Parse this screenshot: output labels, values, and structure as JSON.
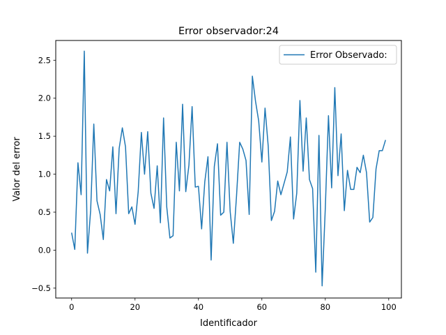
{
  "chart_data": {
    "type": "line",
    "title": "Error observador:24",
    "xlabel": "Identificador",
    "ylabel": "Valor del error",
    "xlim": [
      -5,
      104
    ],
    "ylim": [
      -0.63,
      2.76
    ],
    "xticks": [
      0,
      20,
      40,
      60,
      80,
      100
    ],
    "yticks": [
      -0.5,
      0.0,
      0.5,
      1.0,
      1.5,
      2.0,
      2.5
    ],
    "xtick_labels": [
      "0",
      "20",
      "40",
      "60",
      "80",
      "100"
    ],
    "ytick_labels": [
      "−0.5",
      "0.0",
      "0.5",
      "1.0",
      "1.5",
      "2.0",
      "2.5"
    ],
    "grid": false,
    "legend_position": "upper right",
    "series": [
      {
        "name": "Error Observado:",
        "color": "#1f77b4",
        "x": [
          0,
          1,
          2,
          3,
          4,
          5,
          6,
          7,
          8,
          9,
          10,
          11,
          12,
          13,
          14,
          15,
          16,
          17,
          18,
          19,
          20,
          21,
          22,
          23,
          24,
          25,
          26,
          27,
          28,
          29,
          30,
          31,
          32,
          33,
          34,
          35,
          36,
          37,
          38,
          39,
          40,
          41,
          42,
          43,
          44,
          45,
          46,
          47,
          48,
          49,
          50,
          51,
          52,
          53,
          54,
          55,
          56,
          57,
          58,
          59,
          60,
          61,
          62,
          63,
          64,
          65,
          66,
          67,
          68,
          69,
          70,
          71,
          72,
          73,
          74,
          75,
          76,
          77,
          78,
          79,
          80,
          81,
          82,
          83,
          84,
          85,
          86,
          87,
          88,
          89,
          90,
          91,
          92,
          93,
          94,
          95,
          96,
          97,
          98,
          99
        ],
        "values": [
          0.23,
          0.01,
          1.15,
          0.73,
          2.62,
          -0.04,
          0.52,
          1.66,
          0.65,
          0.47,
          0.14,
          0.93,
          0.78,
          1.36,
          0.48,
          1.34,
          1.61,
          1.36,
          0.48,
          0.57,
          0.34,
          0.77,
          1.55,
          1.0,
          1.56,
          0.75,
          0.55,
          1.11,
          0.36,
          1.74,
          0.57,
          0.16,
          0.19,
          1.42,
          0.78,
          1.92,
          0.77,
          1.12,
          1.89,
          0.83,
          0.84,
          0.28,
          0.9,
          1.23,
          -0.13,
          1.1,
          1.4,
          0.46,
          0.5,
          1.42,
          0.51,
          0.09,
          0.71,
          1.42,
          1.33,
          1.18,
          0.47,
          2.29,
          1.96,
          1.7,
          1.16,
          1.87,
          1.37,
          0.39,
          0.51,
          0.91,
          0.73,
          0.88,
          1.03,
          1.49,
          0.41,
          0.75,
          1.97,
          1.04,
          1.74,
          0.93,
          0.81,
          -0.29,
          1.51,
          -0.47,
          0.55,
          1.77,
          0.82,
          2.14,
          0.98,
          1.53,
          0.52,
          1.05,
          0.8,
          0.8,
          1.09,
          1.02,
          1.25,
          1.02,
          0.37,
          0.43,
          1.07,
          1.31,
          1.31,
          1.45
        ]
      }
    ]
  }
}
